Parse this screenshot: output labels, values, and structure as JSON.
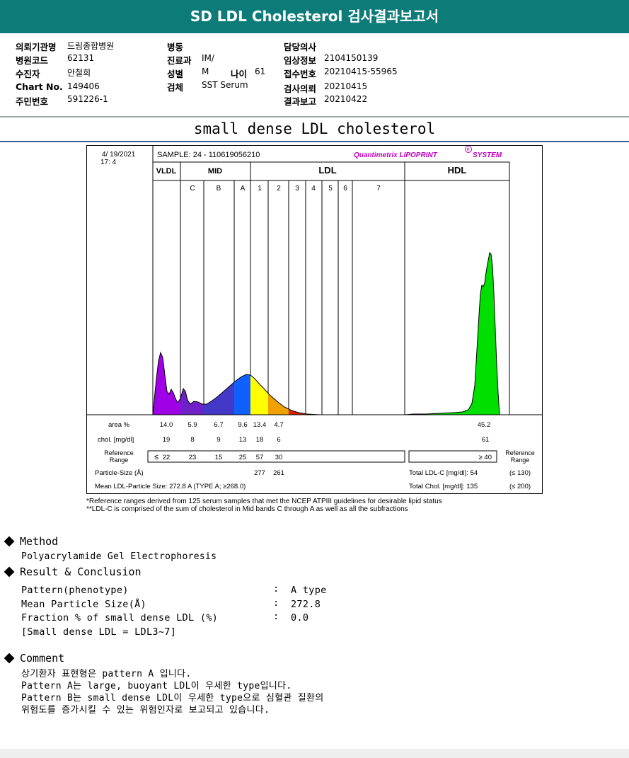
{
  "report": {
    "title": "SD LDL Cholesterol 검사결과보고서",
    "subtitle": "small dense LDL cholesterol"
  },
  "info": {
    "col1": [
      {
        "key": "의뢰기관명",
        "value": "드림종합병원"
      },
      {
        "key": "병원코드",
        "value": "62131"
      },
      {
        "key": "수진자",
        "value": "안철희"
      },
      {
        "key": "Chart No.",
        "value": "149406"
      },
      {
        "key": "주민번호",
        "value": "591226-1"
      }
    ],
    "col2": [
      {
        "key": "병동",
        "value": ""
      },
      {
        "key": "진료과",
        "value": "IM/"
      },
      {
        "key": "성별",
        "value": "M"
      },
      {
        "key": "검체",
        "value": "SST Serum"
      }
    ],
    "age": {
      "key": "나이",
      "value": "61"
    },
    "col3": [
      {
        "key": "담당의사",
        "value": ""
      },
      {
        "key": "임상정보",
        "value": "2104150139"
      },
      {
        "key": "접수번호",
        "value": "20210415-55965"
      },
      {
        "key": "검사의뢰",
        "value": "20210415"
      },
      {
        "key": "결과보고",
        "value": "20210422"
      }
    ]
  },
  "chart": {
    "date": "4/ 19/2021",
    "time": "17:  4",
    "sample_label": "SAMPLE:   24 - 110619056210",
    "brand": "Quantimetrix LIPOPRINT",
    "brand_suffix": "SYSTEM",
    "brand_reg": "R",
    "group_vldl": "VLDL",
    "group_mid": "MID",
    "group_ldl": "LDL",
    "group_hdl": "HDL",
    "bands": [
      "C",
      "B",
      "A",
      "1",
      "2",
      "3",
      "4",
      "5",
      "6",
      "7"
    ],
    "row_area_label": "area %",
    "row_chol_label": "chol. [mg/dl]",
    "row_ref_label_1": "Reference",
    "row_ref_label_2": "Range",
    "area_values": [
      "14.0",
      "5.9",
      "6.7",
      "9.6",
      "13.4",
      "4.7"
    ],
    "hdl_area": "45.2",
    "chol_values": [
      "19",
      "8",
      "9",
      "13",
      "18",
      "6"
    ],
    "hdl_chol": "61",
    "ref_sym": "≤",
    "ref_values": [
      "22",
      "23",
      "15",
      "25",
      "57",
      "30"
    ],
    "hdl_ref": "≥  40",
    "ref_right_1": "Reference",
    "ref_right_2": "Range",
    "particle_size_label": "Particle-Size (Å)",
    "particle_size_values": [
      "277",
      "261"
    ],
    "total_ldl_label": "Total LDL-C [mg/dl]:  54",
    "total_ldl_ref": "(≤ 130)",
    "mean_ldl_label": "Mean LDL-Particle Size:     272.8  A     (TYPE A; ≥268.0)",
    "total_chol_label": "Total Chol.  [mg/dl]:     135",
    "total_chol_ref": "(≤ 200)",
    "fill_colors": {
      "vldl": "#a000e6",
      "midc": "#7020c8",
      "midb": "#4438c8",
      "mida": "#1060ff",
      "ldl1": "#ffff00",
      "ldl2": "#f0a000",
      "ldl3": "#e02000",
      "hdl": "#00e000"
    }
  },
  "notes": [
    "*Reference ranges derived from 125 serum samples that met the NCEP ATPIII guidelines for desirable lipid status",
    "**LDL-C is comprised of the sum of cholesterol in Mid bands C through A as well as all the subfractions"
  ],
  "method": {
    "heading": "Method",
    "text": "Polyacrylamide Gel Electrophoresis"
  },
  "result": {
    "heading": "Result & Conclusion",
    "rows": [
      {
        "label": "Pattern(phenotype)",
        "value": "A type"
      },
      {
        "label": "Mean Particle Size(Å)",
        "value": "272.8"
      },
      {
        "label": "Fraction % of small dense LDL (%)",
        "value": "0.0"
      }
    ],
    "colon": ":",
    "note": "[Small dense LDL = LDL3~7]"
  },
  "comment": {
    "heading": "Comment",
    "lines": [
      "상기환자 표현형은 pattern A 입니다.",
      "Pattern A는 large, buoyant LDL이 우세한 type입니다.",
      "Pattern B는 small dense LDL이 우세한 type으로 심혈관 질환의",
      "위험도를 증가시킬 수 있는 위험인자로 보고되고 있습니다."
    ]
  }
}
